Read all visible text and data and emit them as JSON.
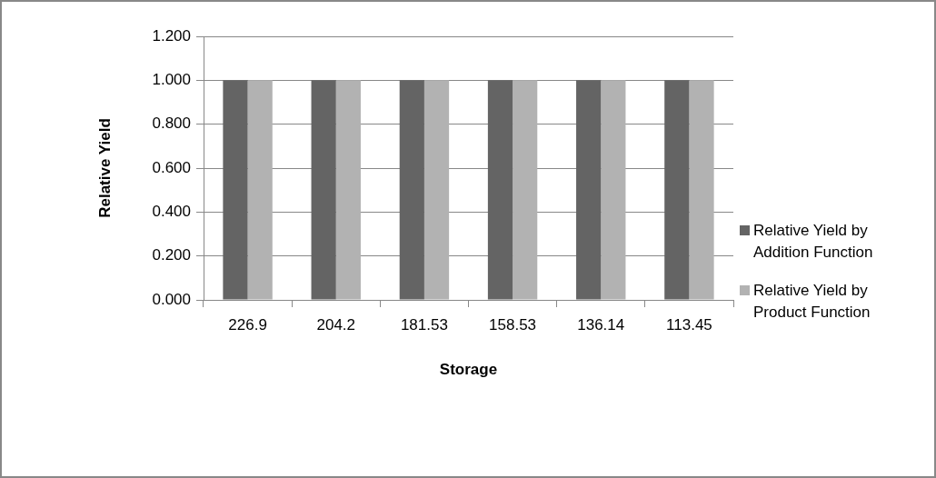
{
  "chart_data": {
    "type": "bar",
    "xlabel": "Storage",
    "ylabel": "Relative Yield",
    "categories": [
      "226.9",
      "204.2",
      "181.53",
      "158.53",
      "136.14",
      "113.45"
    ],
    "series": [
      {
        "name": "Relative Yield by Addition Function",
        "color": "#646464",
        "values": [
          1,
          1,
          1,
          1,
          1,
          1
        ]
      },
      {
        "name": "Relative Yield by Product Function",
        "color": "#b2b2b2",
        "values": [
          1,
          1,
          1,
          1,
          1,
          1
        ]
      }
    ],
    "ylim": [
      0,
      1.2
    ],
    "yticks": [
      {
        "value": 0,
        "label": "0.000"
      },
      {
        "value": 0.2,
        "label": "0.200"
      },
      {
        "value": 0.4,
        "label": "0.400"
      },
      {
        "value": 0.6,
        "label": "0.600"
      },
      {
        "value": 0.8,
        "label": "0.800"
      },
      {
        "value": 1,
        "label": "1.000"
      },
      {
        "value": 1.2,
        "label": "1.200"
      }
    ],
    "grid": "y",
    "legend": "right"
  }
}
